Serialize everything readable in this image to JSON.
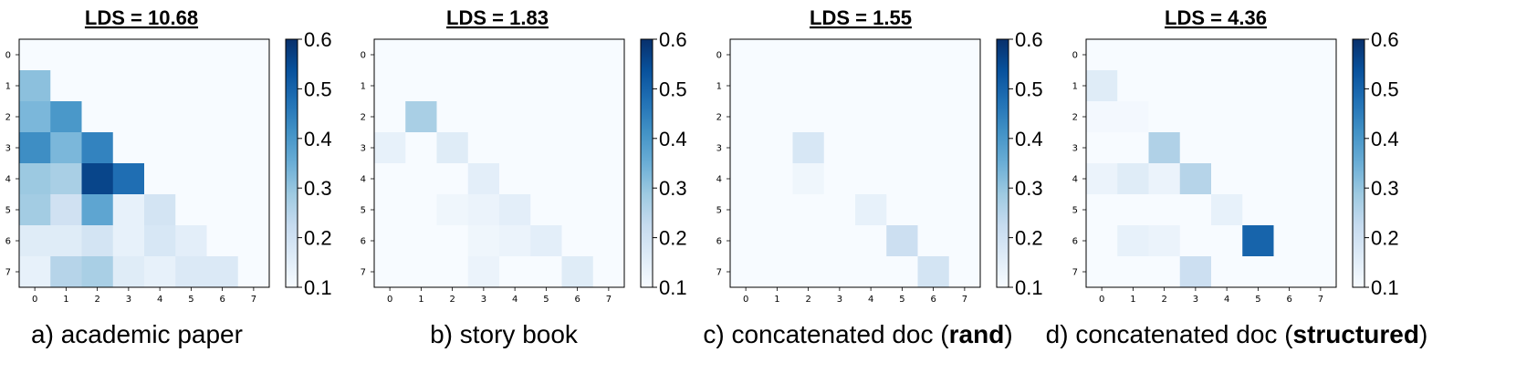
{
  "colors": {
    "cmap": "Blues",
    "low": "#f7fbff",
    "high": "#08306b"
  },
  "chart_data": [
    {
      "type": "heatmap",
      "title": "LDS = 10.68",
      "caption": {
        "prefix": "a) academic paper",
        "bold": "",
        "suffix": ""
      },
      "x": [
        0,
        1,
        2,
        3,
        4,
        5,
        6,
        7
      ],
      "y": [
        0,
        1,
        2,
        3,
        4,
        5,
        6,
        7
      ],
      "vmin": 0.1,
      "vmax": 0.6,
      "colorbar_ticks": [
        "0.1",
        "0.2",
        "0.3",
        "0.4",
        "0.5",
        "0.6"
      ],
      "values": [
        [
          0.1,
          0.1,
          0.1,
          0.1,
          0.1,
          0.1,
          0.1,
          0.1
        ],
        [
          0.31,
          0.1,
          0.1,
          0.1,
          0.1,
          0.1,
          0.1,
          0.1
        ],
        [
          0.33,
          0.4,
          0.1,
          0.1,
          0.1,
          0.1,
          0.1,
          0.1
        ],
        [
          0.42,
          0.33,
          0.44,
          0.1,
          0.1,
          0.1,
          0.1,
          0.1
        ],
        [
          0.29,
          0.27,
          0.56,
          0.48,
          0.1,
          0.1,
          0.1,
          0.1
        ],
        [
          0.28,
          0.2,
          0.37,
          0.14,
          0.19,
          0.1,
          0.1,
          0.1
        ],
        [
          0.16,
          0.16,
          0.19,
          0.14,
          0.18,
          0.15,
          0.1,
          0.1
        ],
        [
          0.14,
          0.25,
          0.27,
          0.16,
          0.14,
          0.17,
          0.17,
          0.1
        ]
      ]
    },
    {
      "type": "heatmap",
      "title": "LDS = 1.83",
      "caption": {
        "prefix": "b) story book",
        "bold": "",
        "suffix": ""
      },
      "x": [
        0,
        1,
        2,
        3,
        4,
        5,
        6,
        7
      ],
      "y": [
        0,
        1,
        2,
        3,
        4,
        5,
        6,
        7
      ],
      "vmin": 0.1,
      "vmax": 0.6,
      "colorbar_ticks": [
        "0.1",
        "0.2",
        "0.3",
        "0.4",
        "0.5",
        "0.6"
      ],
      "values": [
        [
          0.1,
          0.1,
          0.1,
          0.1,
          0.1,
          0.1,
          0.1,
          0.1
        ],
        [
          0.1,
          0.1,
          0.1,
          0.1,
          0.1,
          0.1,
          0.1,
          0.1
        ],
        [
          0.1,
          0.27,
          0.1,
          0.1,
          0.1,
          0.1,
          0.1,
          0.1
        ],
        [
          0.14,
          0.1,
          0.16,
          0.1,
          0.1,
          0.1,
          0.1,
          0.1
        ],
        [
          0.1,
          0.1,
          0.1,
          0.15,
          0.1,
          0.1,
          0.1,
          0.1
        ],
        [
          0.1,
          0.1,
          0.12,
          0.13,
          0.15,
          0.1,
          0.1,
          0.1
        ],
        [
          0.1,
          0.1,
          0.1,
          0.12,
          0.13,
          0.15,
          0.1,
          0.1
        ],
        [
          0.1,
          0.1,
          0.1,
          0.13,
          0.1,
          0.1,
          0.16,
          0.1
        ]
      ]
    },
    {
      "type": "heatmap",
      "title": "LDS = 1.55",
      "caption": {
        "prefix": "c) concatenated doc (",
        "bold": "rand",
        "suffix": ")"
      },
      "x": [
        0,
        1,
        2,
        3,
        4,
        5,
        6,
        7
      ],
      "y": [
        0,
        1,
        2,
        3,
        4,
        5,
        6,
        7
      ],
      "vmin": 0.1,
      "vmax": 0.6,
      "colorbar_ticks": [
        "0.1",
        "0.2",
        "0.3",
        "0.4",
        "0.5",
        "0.6"
      ],
      "values": [
        [
          0.1,
          0.1,
          0.1,
          0.1,
          0.1,
          0.1,
          0.1,
          0.1
        ],
        [
          0.1,
          0.1,
          0.1,
          0.1,
          0.1,
          0.1,
          0.1,
          0.1
        ],
        [
          0.1,
          0.1,
          0.1,
          0.1,
          0.1,
          0.1,
          0.1,
          0.1
        ],
        [
          0.1,
          0.1,
          0.18,
          0.1,
          0.1,
          0.1,
          0.1,
          0.1
        ],
        [
          0.1,
          0.1,
          0.12,
          0.1,
          0.1,
          0.1,
          0.1,
          0.1
        ],
        [
          0.1,
          0.1,
          0.1,
          0.1,
          0.14,
          0.1,
          0.1,
          0.1
        ],
        [
          0.1,
          0.1,
          0.1,
          0.1,
          0.1,
          0.21,
          0.1,
          0.1
        ],
        [
          0.1,
          0.1,
          0.1,
          0.1,
          0.1,
          0.1,
          0.19,
          0.1
        ]
      ]
    },
    {
      "type": "heatmap",
      "title": "LDS = 4.36",
      "caption": {
        "prefix": "d) concatenated doc (",
        "bold": "structured",
        "suffix": ")"
      },
      "x": [
        0,
        1,
        2,
        3,
        4,
        5,
        6,
        7
      ],
      "y": [
        0,
        1,
        2,
        3,
        4,
        5,
        6,
        7
      ],
      "vmin": 0.1,
      "vmax": 0.6,
      "colorbar_ticks": [
        "0.1",
        "0.2",
        "0.3",
        "0.4",
        "0.5",
        "0.6"
      ],
      "values": [
        [
          0.1,
          0.1,
          0.1,
          0.1,
          0.1,
          0.1,
          0.1,
          0.1
        ],
        [
          0.16,
          0.1,
          0.1,
          0.1,
          0.1,
          0.1,
          0.1,
          0.1
        ],
        [
          0.11,
          0.11,
          0.1,
          0.1,
          0.1,
          0.1,
          0.1,
          0.1
        ],
        [
          0.1,
          0.1,
          0.26,
          0.1,
          0.1,
          0.1,
          0.1,
          0.1
        ],
        [
          0.13,
          0.16,
          0.13,
          0.25,
          0.1,
          0.1,
          0.1,
          0.1
        ],
        [
          0.1,
          0.1,
          0.1,
          0.1,
          0.14,
          0.1,
          0.1,
          0.1
        ],
        [
          0.1,
          0.14,
          0.13,
          0.1,
          0.1,
          0.5,
          0.1,
          0.1
        ],
        [
          0.1,
          0.1,
          0.1,
          0.21,
          0.1,
          0.1,
          0.1,
          0.1
        ]
      ]
    }
  ]
}
